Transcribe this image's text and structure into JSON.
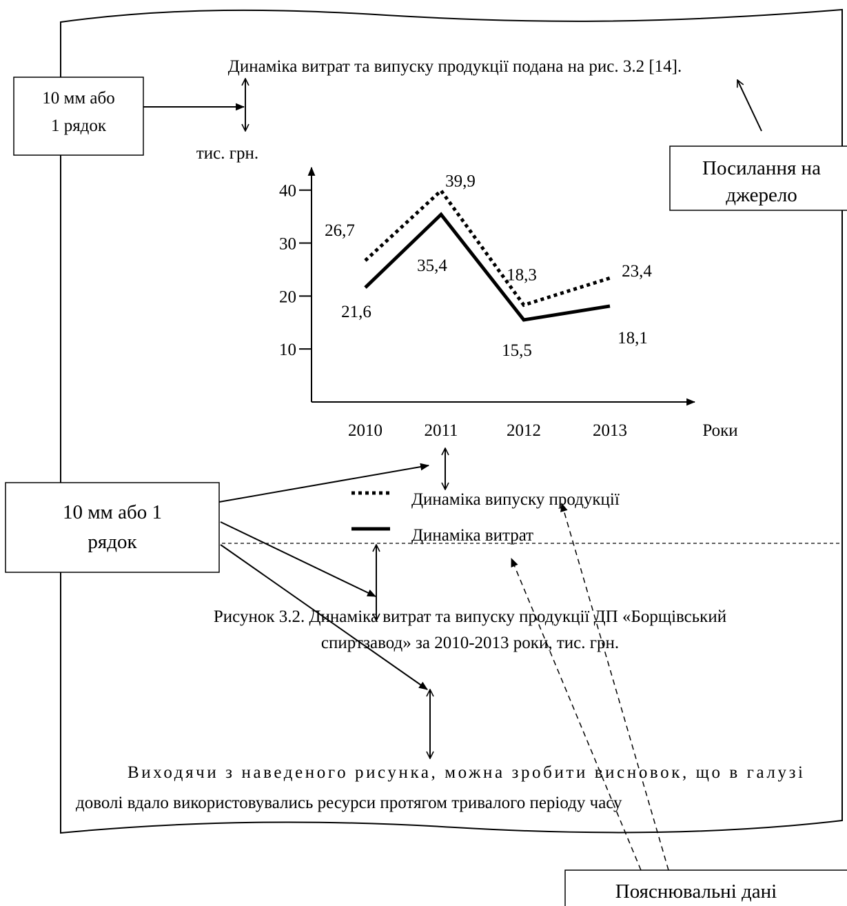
{
  "header_text": "Динаміка витрат та випуску продукції подана на рис. 3.2 [14].",
  "callouts": {
    "spacing_top": [
      "10 мм або",
      "1 рядок"
    ],
    "source": [
      "Посилання на",
      "джерело"
    ],
    "spacing_figure": [
      "10 мм або 1",
      "рядок"
    ],
    "explanatory": "Пояснювальні дані"
  },
  "caption": [
    "Рисунок 3.2. Динаміка витрат та випуску продукції ДП «Борщівський",
    "спиртзавод» за 2010-2013 роки, тис. грн."
  ],
  "paragraph": [
    "Виходячи з наведеного рисунка, можна зробити висновок, що в галузі",
    "доволі вдало використовувались ресурси протягом тривалого періоду часу"
  ],
  "chart_data": {
    "type": "line",
    "y_label": "тис. грн.",
    "x_label": "Роки",
    "categories": [
      "2010",
      "2011",
      "2012",
      "2013"
    ],
    "series": [
      {
        "name": "Динаміка випуску продукції",
        "color": "#000000",
        "dash": "dotted",
        "values": [
          26.7,
          39.9,
          18.3,
          23.4
        ],
        "value_labels": [
          "26,7",
          "39,9",
          "18,3",
          "23,4"
        ]
      },
      {
        "name": "Динаміка витрат",
        "color": "#000000",
        "dash": "solid",
        "values": [
          21.6,
          35.4,
          15.5,
          18.1
        ],
        "value_labels": [
          "21,6",
          "35,4",
          "15,5",
          "18,1"
        ]
      }
    ],
    "ylim": [
      0,
      44
    ],
    "yticks": [
      10,
      20,
      30,
      40
    ],
    "grid": false
  }
}
